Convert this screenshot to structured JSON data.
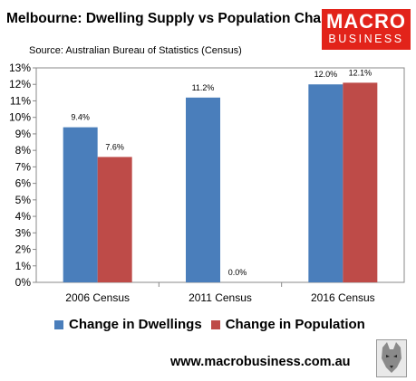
{
  "header": {
    "title": "Melbourne: Dwelling Supply vs Population Change",
    "source": "Source: Australian Bureau of Statistics (Census)"
  },
  "logo": {
    "line1": "MACRO",
    "line2": "BUSINESS",
    "color": "#e2231a"
  },
  "footer": {
    "website": "www.macrobusiness.com.au",
    "mascot_icon": "wolf-icon"
  },
  "chart_data": {
    "type": "bar",
    "title": "Melbourne: Dwelling Supply vs Population Change",
    "categories": [
      "2006 Census",
      "2011 Census",
      "2016 Census"
    ],
    "series": [
      {
        "name": "Change in Dwellings",
        "values": [
          9.4,
          11.2,
          12.0
        ],
        "labels": [
          "9.4%",
          "11.2%",
          "12.0%"
        ],
        "color": "#4a7ebb"
      },
      {
        "name": "Change in Population",
        "values": [
          7.6,
          0.0,
          12.1
        ],
        "labels": [
          "7.6%",
          "0.0%",
          "12.1%"
        ],
        "color": "#be4b48"
      }
    ],
    "ylim": [
      0,
      13
    ],
    "yticks": [
      "0%",
      "1%",
      "2%",
      "3%",
      "4%",
      "5%",
      "6%",
      "7%",
      "8%",
      "9%",
      "10%",
      "11%",
      "12%",
      "13%"
    ],
    "grid": false,
    "legend": "bottom"
  }
}
